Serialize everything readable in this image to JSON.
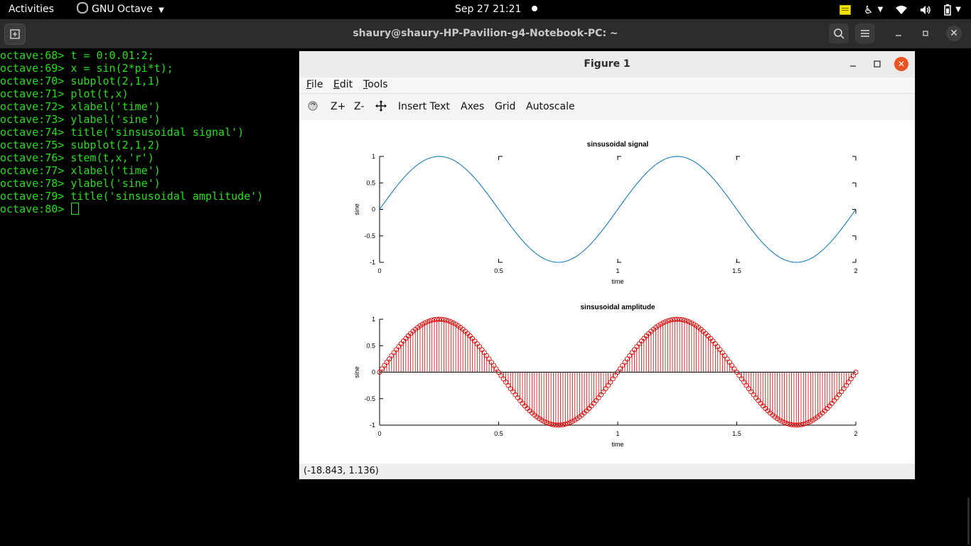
{
  "topbar": {
    "activities": "Activities",
    "app_name": "GNU Octave",
    "clock": "Sep 27  21:21"
  },
  "terminal": {
    "title": "shaury@shaury-HP-Pavilion-g4-Notebook-PC: ~",
    "lines": [
      "octave:68> t = 0:0.01:2;",
      "octave:69> x = sin(2*pi*t);",
      "octave:70> subplot(2,1,1)",
      "octave:71> plot(t,x)",
      "octave:72> xlabel('time')",
      "octave:73> ylabel('sine')",
      "octave:74> title('sinsusoidal signal')",
      "octave:75> subplot(2,1,2)",
      "octave:76> stem(t,x,'r')",
      "octave:77> xlabel('time')",
      "octave:78> ylabel('sine')",
      "octave:79> title('sinsusoidal amplitude')",
      "octave:80> "
    ],
    "text_color": "#23e017"
  },
  "figure": {
    "title": "Figure 1",
    "menu": [
      "File",
      "Edit",
      "Tools"
    ],
    "toolbar": {
      "zoom_in": "Z+",
      "zoom_out": "Z-",
      "insert_text": "Insert Text",
      "axes": "Axes",
      "grid": "Grid",
      "autoscale": "Autoscale"
    },
    "status": "(-18.843, 1.136)"
  },
  "chart_data": [
    {
      "type": "line",
      "title": "sinsusoidal signal",
      "xlabel": "time",
      "ylabel": "sine",
      "xlim": [
        0,
        2
      ],
      "ylim": [
        -1,
        1
      ],
      "xticks": [
        "0",
        "0.5",
        "1",
        "1.5",
        "2"
      ],
      "yticks": [
        "1",
        "0.5",
        "0",
        "-0.5",
        "-1"
      ],
      "function": "x = sin(2*pi*t)",
      "t_start": 0,
      "t_step": 0.01,
      "t_end": 2,
      "color": "#0072bd",
      "grid": false
    },
    {
      "type": "stem",
      "title": "sinsusoidal amplitude",
      "xlabel": "time",
      "ylabel": "sine",
      "xlim": [
        0,
        2
      ],
      "ylim": [
        -1,
        1
      ],
      "xticks": [
        "0",
        "0.5",
        "1",
        "1.5",
        "2"
      ],
      "yticks": [
        "1",
        "0.5",
        "0",
        "-0.5",
        "-1"
      ],
      "function": "x = sin(2*pi*t)",
      "t_start": 0,
      "t_step": 0.01,
      "t_end": 2,
      "color": "#e00000",
      "grid": false
    }
  ]
}
